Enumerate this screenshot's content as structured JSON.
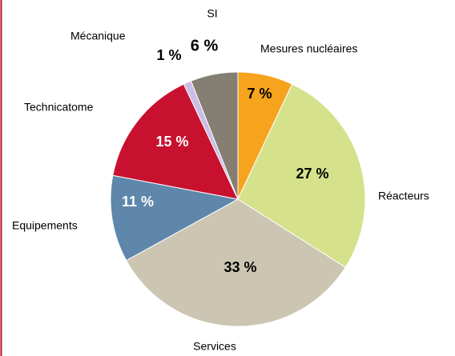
{
  "chart_data": {
    "type": "pie",
    "categories": [
      "Mesures nucléaires",
      "Réacteurs",
      "Services",
      "Equipements",
      "Technicatome",
      "Mécanique",
      "SI"
    ],
    "values": [
      7,
      27,
      33,
      11,
      15,
      1,
      6
    ],
    "value_labels": [
      "7 %",
      "27 %",
      "33 %",
      "11 %",
      "15 %",
      "1 %",
      "6 %"
    ],
    "colors": [
      "#f6a31e",
      "#d5e18b",
      "#cbc5b2",
      "#5f87ab",
      "#c8112f",
      "#cbbde3",
      "#857f73"
    ]
  }
}
